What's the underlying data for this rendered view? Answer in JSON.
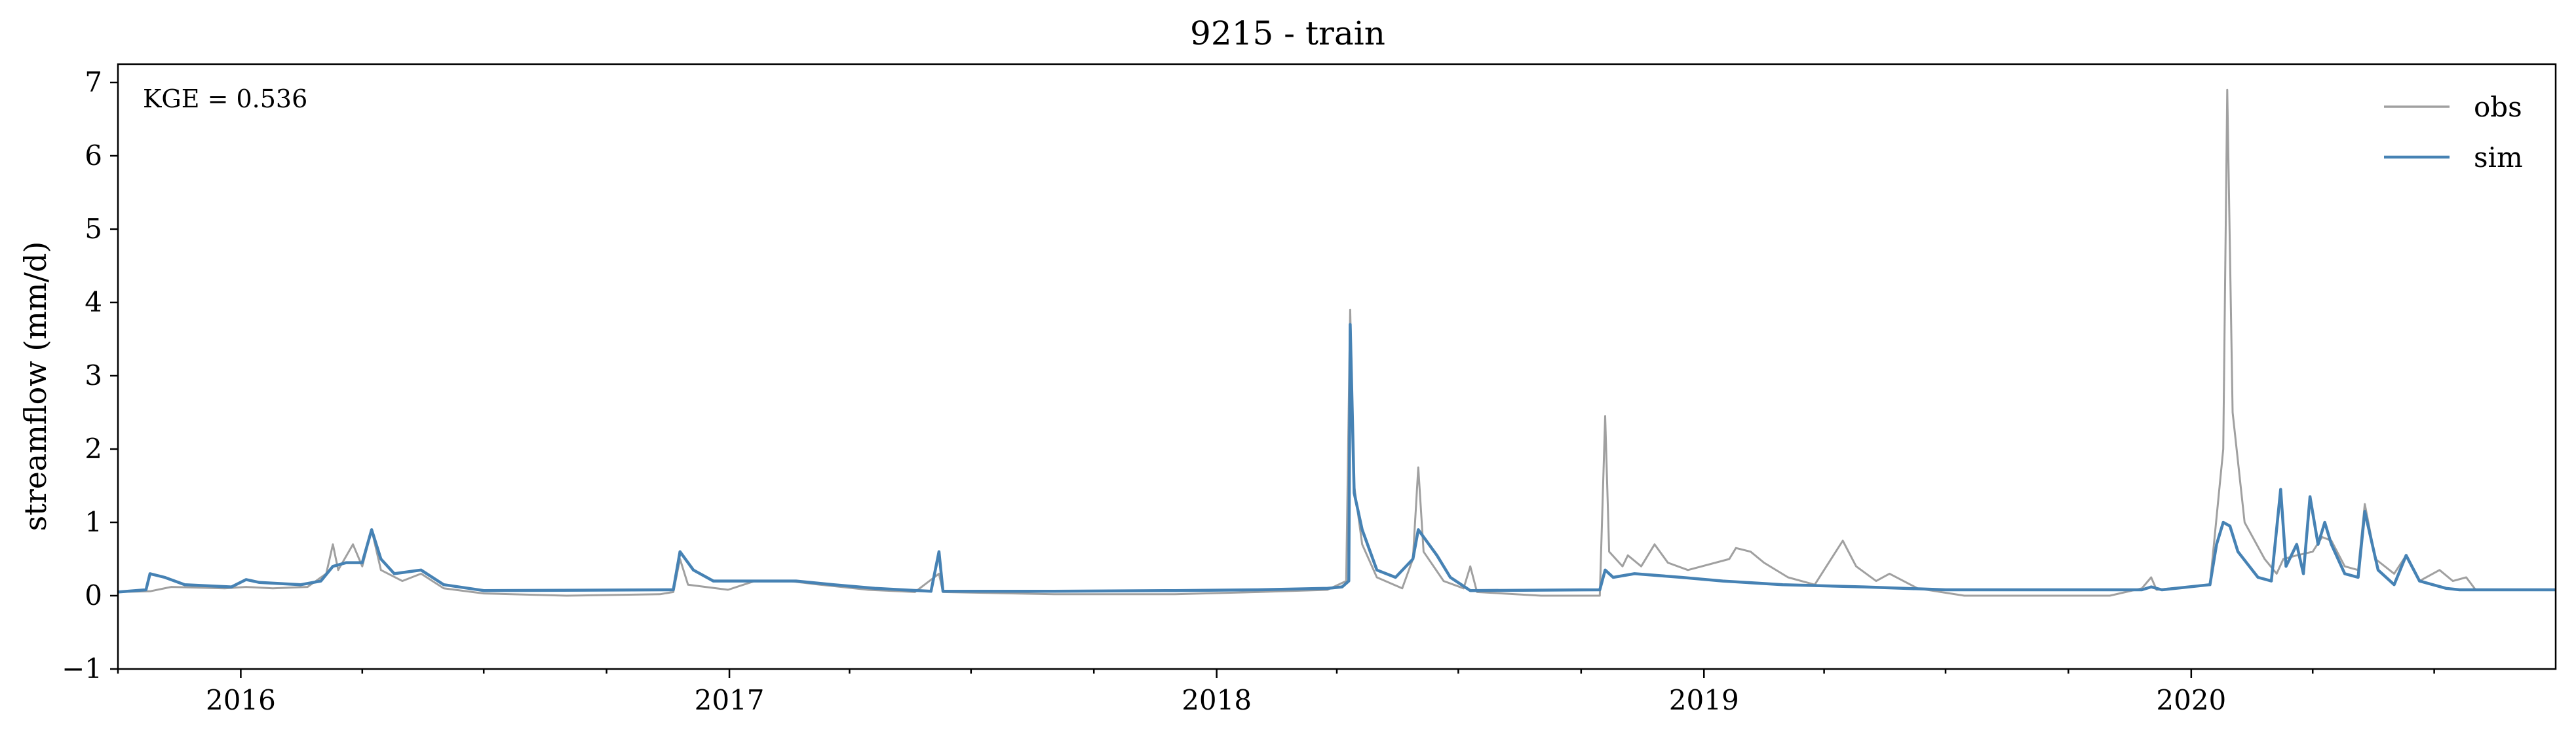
{
  "chart_data": {
    "type": "line",
    "title": "9215 - train",
    "xlabel": "",
    "ylabel": "streamflow (mm/d)",
    "ylim": [
      -1,
      7.25
    ],
    "yticks": [
      -1,
      0,
      1,
      2,
      3,
      4,
      5,
      6,
      7
    ],
    "xlim": [
      "2015-10-01",
      "2020-09-30"
    ],
    "xticks": [
      {
        "date": "2016-01-01",
        "label": "2016"
      },
      {
        "date": "2017-01-01",
        "label": "2017"
      },
      {
        "date": "2018-01-01",
        "label": "2018"
      },
      {
        "date": "2019-01-01",
        "label": "2019"
      },
      {
        "date": "2020-01-01",
        "label": "2020"
      }
    ],
    "grid": false,
    "legend_position": "top-right",
    "annotation": "KGE = 0.536",
    "series": [
      {
        "name": "obs",
        "color": "#a0a0a0",
        "points": [
          [
            "2015-10-01",
            0.05
          ],
          [
            "2015-10-25",
            0.06
          ],
          [
            "2015-11-10",
            0.12
          ],
          [
            "2015-12-20",
            0.1
          ],
          [
            "2016-01-05",
            0.12
          ],
          [
            "2016-01-25",
            0.1
          ],
          [
            "2016-02-20",
            0.12
          ],
          [
            "2016-03-05",
            0.3
          ],
          [
            "2016-03-10",
            0.7
          ],
          [
            "2016-03-14",
            0.35
          ],
          [
            "2016-03-25",
            0.7
          ],
          [
            "2016-04-01",
            0.4
          ],
          [
            "2016-04-08",
            0.9
          ],
          [
            "2016-04-15",
            0.35
          ],
          [
            "2016-05-01",
            0.2
          ],
          [
            "2016-05-15",
            0.3
          ],
          [
            "2016-06-01",
            0.1
          ],
          [
            "2016-07-01",
            0.03
          ],
          [
            "2016-09-01",
            0.0
          ],
          [
            "2016-11-10",
            0.02
          ],
          [
            "2016-11-20",
            0.05
          ],
          [
            "2016-11-25",
            0.5
          ],
          [
            "2016-12-01",
            0.15
          ],
          [
            "2016-12-31",
            0.08
          ],
          [
            "2017-01-20",
            0.2
          ],
          [
            "2017-02-15",
            0.2
          ],
          [
            "2017-03-10",
            0.15
          ],
          [
            "2017-04-15",
            0.08
          ],
          [
            "2017-05-20",
            0.05
          ],
          [
            "2017-06-07",
            0.3
          ],
          [
            "2017-06-10",
            0.05
          ],
          [
            "2017-09-01",
            0.02
          ],
          [
            "2017-12-01",
            0.02
          ],
          [
            "2018-02-01",
            0.05
          ],
          [
            "2018-03-25",
            0.08
          ],
          [
            "2018-04-08",
            0.2
          ],
          [
            "2018-04-11",
            3.9
          ],
          [
            "2018-04-14",
            1.5
          ],
          [
            "2018-04-20",
            0.7
          ],
          [
            "2018-05-01",
            0.25
          ],
          [
            "2018-05-20",
            0.1
          ],
          [
            "2018-05-28",
            0.5
          ],
          [
            "2018-06-01",
            1.75
          ],
          [
            "2018-06-05",
            0.6
          ],
          [
            "2018-06-20",
            0.2
          ],
          [
            "2018-07-05",
            0.1
          ],
          [
            "2018-07-10",
            0.4
          ],
          [
            "2018-07-15",
            0.05
          ],
          [
            "2018-09-01",
            0.0
          ],
          [
            "2018-10-15",
            0.0
          ],
          [
            "2018-10-19",
            2.45
          ],
          [
            "2018-10-22",
            0.6
          ],
          [
            "2018-11-01",
            0.4
          ],
          [
            "2018-11-05",
            0.55
          ],
          [
            "2018-11-15",
            0.4
          ],
          [
            "2018-11-25",
            0.7
          ],
          [
            "2018-12-05",
            0.45
          ],
          [
            "2018-12-20",
            0.35
          ],
          [
            "2019-01-20",
            0.5
          ],
          [
            "2019-01-25",
            0.65
          ],
          [
            "2019-02-05",
            0.6
          ],
          [
            "2019-02-15",
            0.45
          ],
          [
            "2019-03-05",
            0.25
          ],
          [
            "2019-03-25",
            0.15
          ],
          [
            "2019-04-15",
            0.75
          ],
          [
            "2019-04-25",
            0.4
          ],
          [
            "2019-05-10",
            0.2
          ],
          [
            "2019-05-20",
            0.3
          ],
          [
            "2019-06-10",
            0.1
          ],
          [
            "2019-07-15",
            0.0
          ],
          [
            "2019-11-01",
            0.0
          ],
          [
            "2019-11-25",
            0.1
          ],
          [
            "2019-12-02",
            0.25
          ],
          [
            "2019-12-06",
            0.08
          ],
          [
            "2020-01-15",
            0.15
          ],
          [
            "2020-01-25",
            2.0
          ],
          [
            "2020-01-28",
            6.9
          ],
          [
            "2020-02-01",
            2.5
          ],
          [
            "2020-02-10",
            1.0
          ],
          [
            "2020-02-25",
            0.5
          ],
          [
            "2020-03-05",
            0.3
          ],
          [
            "2020-03-10",
            0.5
          ],
          [
            "2020-03-20",
            0.55
          ],
          [
            "2020-04-01",
            0.6
          ],
          [
            "2020-04-08",
            0.8
          ],
          [
            "2020-04-15",
            0.75
          ],
          [
            "2020-04-25",
            0.4
          ],
          [
            "2020-05-05",
            0.35
          ],
          [
            "2020-05-10",
            1.25
          ],
          [
            "2020-05-18",
            0.5
          ],
          [
            "2020-06-01",
            0.3
          ],
          [
            "2020-06-10",
            0.55
          ],
          [
            "2020-06-20",
            0.2
          ],
          [
            "2020-07-05",
            0.35
          ],
          [
            "2020-07-15",
            0.2
          ],
          [
            "2020-07-25",
            0.25
          ],
          [
            "2020-08-01",
            0.08
          ],
          [
            "2020-09-30",
            0.08
          ]
        ]
      },
      {
        "name": "sim",
        "color": "#4682b4",
        "points": [
          [
            "2015-10-01",
            0.05
          ],
          [
            "2015-10-22",
            0.08
          ],
          [
            "2015-10-25",
            0.3
          ],
          [
            "2015-11-05",
            0.25
          ],
          [
            "2015-11-20",
            0.15
          ],
          [
            "2015-12-25",
            0.12
          ],
          [
            "2016-01-05",
            0.22
          ],
          [
            "2016-01-15",
            0.18
          ],
          [
            "2016-02-15",
            0.15
          ],
          [
            "2016-03-01",
            0.2
          ],
          [
            "2016-03-10",
            0.4
          ],
          [
            "2016-03-20",
            0.45
          ],
          [
            "2016-04-01",
            0.45
          ],
          [
            "2016-04-08",
            0.9
          ],
          [
            "2016-04-15",
            0.5
          ],
          [
            "2016-04-25",
            0.3
          ],
          [
            "2016-05-15",
            0.35
          ],
          [
            "2016-06-01",
            0.15
          ],
          [
            "2016-07-01",
            0.07
          ],
          [
            "2016-11-20",
            0.08
          ],
          [
            "2016-11-25",
            0.6
          ],
          [
            "2016-12-05",
            0.35
          ],
          [
            "2016-12-20",
            0.2
          ],
          [
            "2017-01-20",
            0.2
          ],
          [
            "2017-02-20",
            0.2
          ],
          [
            "2017-03-20",
            0.15
          ],
          [
            "2017-04-20",
            0.1
          ],
          [
            "2017-06-01",
            0.06
          ],
          [
            "2017-06-07",
            0.6
          ],
          [
            "2017-06-10",
            0.06
          ],
          [
            "2017-09-01",
            0.06
          ],
          [
            "2017-12-01",
            0.07
          ],
          [
            "2018-02-01",
            0.08
          ],
          [
            "2018-03-25",
            0.1
          ],
          [
            "2018-04-05",
            0.12
          ],
          [
            "2018-04-10",
            0.2
          ],
          [
            "2018-04-11",
            3.7
          ],
          [
            "2018-04-14",
            1.4
          ],
          [
            "2018-04-20",
            0.9
          ],
          [
            "2018-05-01",
            0.35
          ],
          [
            "2018-05-15",
            0.25
          ],
          [
            "2018-05-28",
            0.5
          ],
          [
            "2018-06-01",
            0.9
          ],
          [
            "2018-06-15",
            0.55
          ],
          [
            "2018-06-25",
            0.25
          ],
          [
            "2018-07-10",
            0.07
          ],
          [
            "2018-10-15",
            0.08
          ],
          [
            "2018-10-19",
            0.35
          ],
          [
            "2018-10-25",
            0.25
          ],
          [
            "2018-11-10",
            0.3
          ],
          [
            "2018-12-15",
            0.25
          ],
          [
            "2019-01-15",
            0.2
          ],
          [
            "2019-03-01",
            0.15
          ],
          [
            "2019-05-01",
            0.12
          ],
          [
            "2019-07-01",
            0.08
          ],
          [
            "2019-11-25",
            0.08
          ],
          [
            "2019-12-02",
            0.12
          ],
          [
            "2019-12-10",
            0.08
          ],
          [
            "2020-01-15",
            0.15
          ],
          [
            "2020-01-20",
            0.7
          ],
          [
            "2020-01-25",
            1.0
          ],
          [
            "2020-01-30",
            0.95
          ],
          [
            "2020-02-05",
            0.6
          ],
          [
            "2020-02-20",
            0.25
          ],
          [
            "2020-03-01",
            0.2
          ],
          [
            "2020-03-08",
            1.45
          ],
          [
            "2020-03-12",
            0.4
          ],
          [
            "2020-03-20",
            0.7
          ],
          [
            "2020-03-25",
            0.3
          ],
          [
            "2020-03-30",
            1.35
          ],
          [
            "2020-04-05",
            0.7
          ],
          [
            "2020-04-10",
            1.0
          ],
          [
            "2020-04-15",
            0.7
          ],
          [
            "2020-04-25",
            0.3
          ],
          [
            "2020-05-05",
            0.25
          ],
          [
            "2020-05-10",
            1.15
          ],
          [
            "2020-05-20",
            0.35
          ],
          [
            "2020-06-01",
            0.15
          ],
          [
            "2020-06-10",
            0.55
          ],
          [
            "2020-06-20",
            0.2
          ],
          [
            "2020-07-10",
            0.1
          ],
          [
            "2020-07-20",
            0.08
          ],
          [
            "2020-09-30",
            0.08
          ]
        ]
      }
    ]
  }
}
